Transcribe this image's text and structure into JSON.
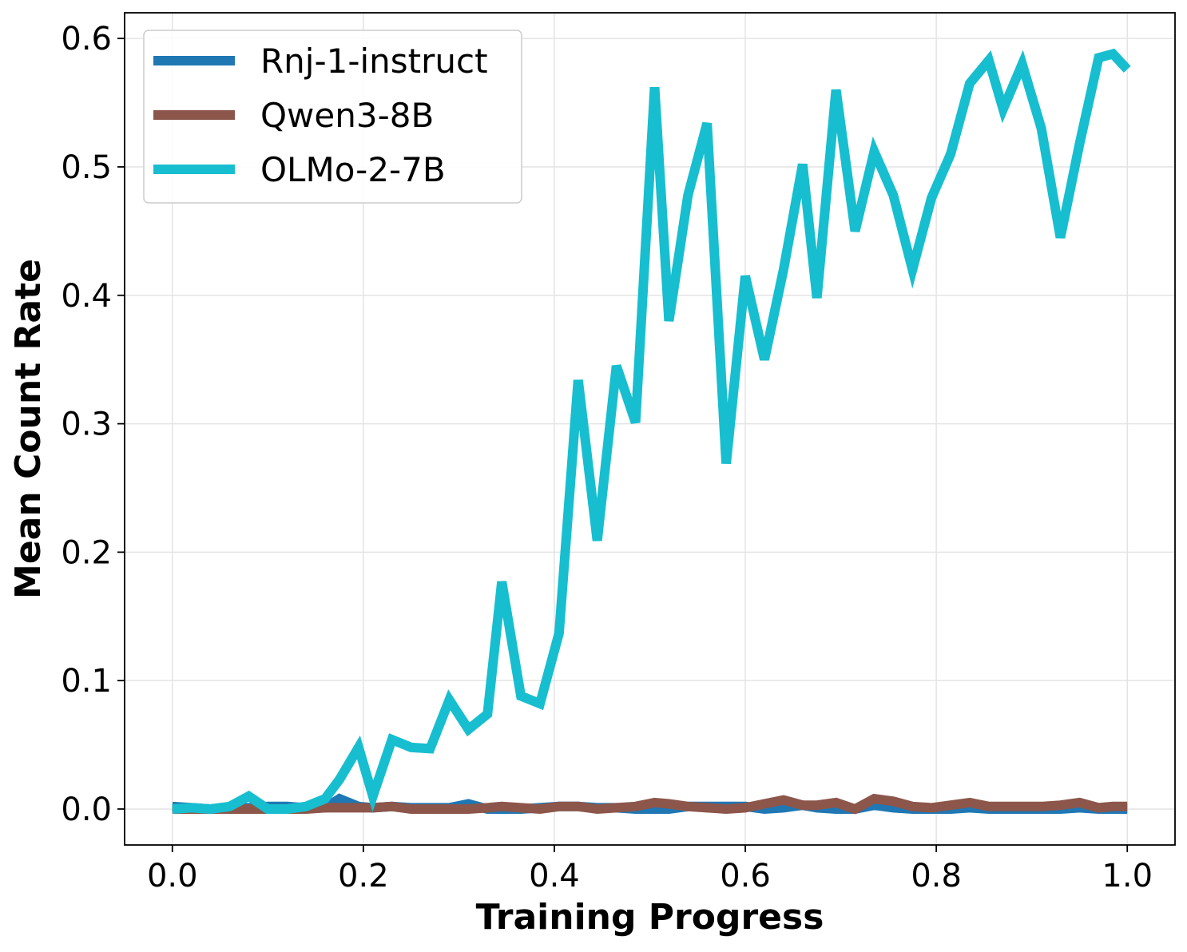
{
  "chart_data": {
    "type": "line",
    "title": "",
    "xlabel": "Training Progress",
    "ylabel": "Mean Count Rate",
    "xlim": [
      -0.05,
      1.05
    ],
    "ylim": [
      -0.028,
      0.62
    ],
    "xticks": [
      0.0,
      0.2,
      0.4,
      0.6,
      0.8,
      1.0
    ],
    "xtick_labels": [
      "0.0",
      "0.2",
      "0.4",
      "0.6",
      "0.8",
      "1.0"
    ],
    "yticks": [
      0.0,
      0.1,
      0.2,
      0.3,
      0.4,
      0.5,
      0.6
    ],
    "ytick_labels": [
      "0.0",
      "0.1",
      "0.2",
      "0.3",
      "0.4",
      "0.5",
      "0.6"
    ],
    "grid": true,
    "legend_position": "top-left",
    "x": [
      0.0,
      0.02,
      0.04,
      0.06,
      0.08,
      0.1,
      0.12,
      0.14,
      0.16,
      0.175,
      0.195,
      0.21,
      0.23,
      0.25,
      0.27,
      0.29,
      0.31,
      0.33,
      0.345,
      0.365,
      0.385,
      0.405,
      0.425,
      0.445,
      0.465,
      0.485,
      0.505,
      0.52,
      0.54,
      0.56,
      0.58,
      0.6,
      0.62,
      0.64,
      0.66,
      0.675,
      0.695,
      0.715,
      0.735,
      0.755,
      0.775,
      0.795,
      0.815,
      0.835,
      0.855,
      0.87,
      0.89,
      0.91,
      0.93,
      0.95,
      0.97,
      0.985,
      1.0
    ],
    "series": [
      {
        "name": "Rnj-1-instruct",
        "color": "#1f77b4",
        "values": [
          0.002,
          0.001,
          0.0,
          0.001,
          0.001,
          0.002,
          0.002,
          0.001,
          0.001,
          0.008,
          0.002,
          0.001,
          0.002,
          0.001,
          0.001,
          0.001,
          0.004,
          0.0,
          0.0,
          0.0,
          0.001,
          0.002,
          0.002,
          0.001,
          0.001,
          0.0,
          0.0,
          0.0,
          0.002,
          0.002,
          0.002,
          0.002,
          0.0,
          0.001,
          0.003,
          0.001,
          0.0,
          0.0,
          0.003,
          0.001,
          0.0,
          0.0,
          0.0,
          0.001,
          0.0,
          0.0,
          0.0,
          0.0,
          0.0,
          0.001,
          0.0,
          0.0,
          0.0
        ]
      },
      {
        "name": "Qwen3-8B",
        "color": "#8c564b",
        "values": [
          0.0,
          0.0,
          0.0,
          0.0,
          0.0,
          0.0,
          0.0,
          0.0,
          0.001,
          0.001,
          0.001,
          0.001,
          0.002,
          0.0,
          0.0,
          0.0,
          0.0,
          0.001,
          0.002,
          0.001,
          0.0,
          0.002,
          0.002,
          0.0,
          0.001,
          0.002,
          0.005,
          0.004,
          0.002,
          0.001,
          0.0,
          0.001,
          0.004,
          0.007,
          0.003,
          0.003,
          0.005,
          0.0,
          0.008,
          0.006,
          0.002,
          0.001,
          0.003,
          0.005,
          0.002,
          0.002,
          0.002,
          0.002,
          0.003,
          0.005,
          0.001,
          0.002,
          0.002
        ]
      },
      {
        "name": "OLMo-2-7B",
        "color": "#17becf",
        "values": [
          0.0,
          0.001,
          0.0,
          0.002,
          0.01,
          0.0,
          0.0,
          0.002,
          0.008,
          0.023,
          0.048,
          0.01,
          0.054,
          0.048,
          0.047,
          0.085,
          0.062,
          0.074,
          0.177,
          0.088,
          0.082,
          0.137,
          0.334,
          0.209,
          0.345,
          0.301,
          0.562,
          0.38,
          0.478,
          0.534,
          0.269,
          0.415,
          0.35,
          0.42,
          0.502,
          0.398,
          0.56,
          0.45,
          0.512,
          0.478,
          0.42,
          0.476,
          0.51,
          0.565,
          0.583,
          0.545,
          0.58,
          0.53,
          0.445,
          0.518,
          0.585,
          0.588,
          0.576
        ]
      }
    ]
  }
}
